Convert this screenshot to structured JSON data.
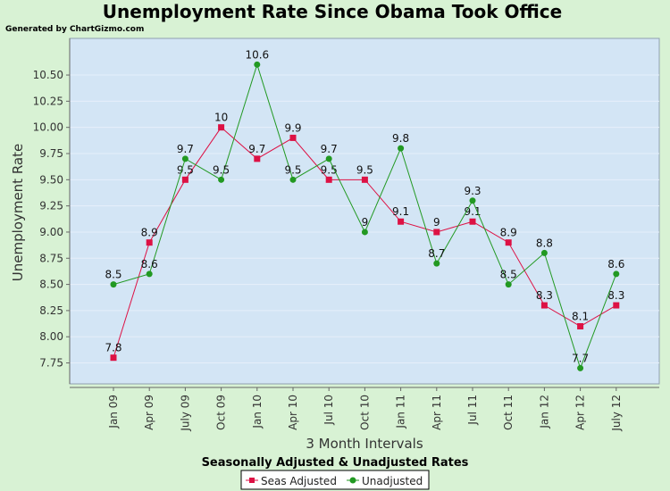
{
  "chart_data": {
    "type": "line",
    "title": "Unemployment Rate Since Obama Took Office",
    "credit": "Generated by ChartGizmo.com",
    "xlabel": "3 Month Intervals",
    "ylabel": "Unemployment Rate",
    "subtitle": "Seasonally Adjusted & Unadjusted Rates",
    "categories": [
      "Jan 09",
      "Apr 09",
      "July 09",
      "Oct 09",
      "Jan 10",
      "Apr 10",
      "Jul 10",
      "Oct 10",
      "Jan 11",
      "Apr 11",
      "Jul 11",
      "Oct 11",
      "Jan 12",
      "Apr 12",
      "July 12"
    ],
    "yticks": [
      "7.75",
      "8.00",
      "8.25",
      "8.50",
      "8.75",
      "9.00",
      "9.25",
      "9.50",
      "9.75",
      "10.00",
      "10.25",
      "10.50"
    ],
    "ylim": [
      7.55,
      10.85
    ],
    "grid": true,
    "legend_position": "bottom-center",
    "series": [
      {
        "name": "Seas Adjusted",
        "color": "#dd1144",
        "marker": "square",
        "values": [
          7.8,
          8.9,
          9.5,
          10,
          9.7,
          9.9,
          9.5,
          9.5,
          9.1,
          9,
          9.1,
          8.9,
          8.3,
          8.1,
          8.3
        ],
        "labels": [
          "7.8",
          "8.9",
          "9.5",
          "10",
          "9.7",
          "9.9",
          "9.5",
          "9.5",
          "9.1",
          "9",
          "9.1",
          "8.9",
          "8.3",
          "8.1",
          "8.3"
        ]
      },
      {
        "name": "Unadjusted",
        "color": "#229922",
        "marker": "circle",
        "values": [
          8.5,
          8.6,
          9.7,
          9.5,
          10.6,
          9.5,
          9.7,
          9.0,
          9.8,
          8.7,
          9.3,
          8.5,
          8.8,
          7.7,
          8.6
        ],
        "labels": [
          "8.5",
          "8.6",
          "9.7",
          "9.5",
          "10.6",
          "9.5",
          "9.7",
          "9",
          "9.8",
          "8.7",
          "9.3",
          "8.5",
          "8.8",
          "7.7",
          "8.6"
        ]
      }
    ]
  },
  "colors": {
    "page_bg": "#d8f2d4",
    "plot_bg": "#d3e5f5",
    "gridline": "#e6effa",
    "axis": "#666666"
  }
}
